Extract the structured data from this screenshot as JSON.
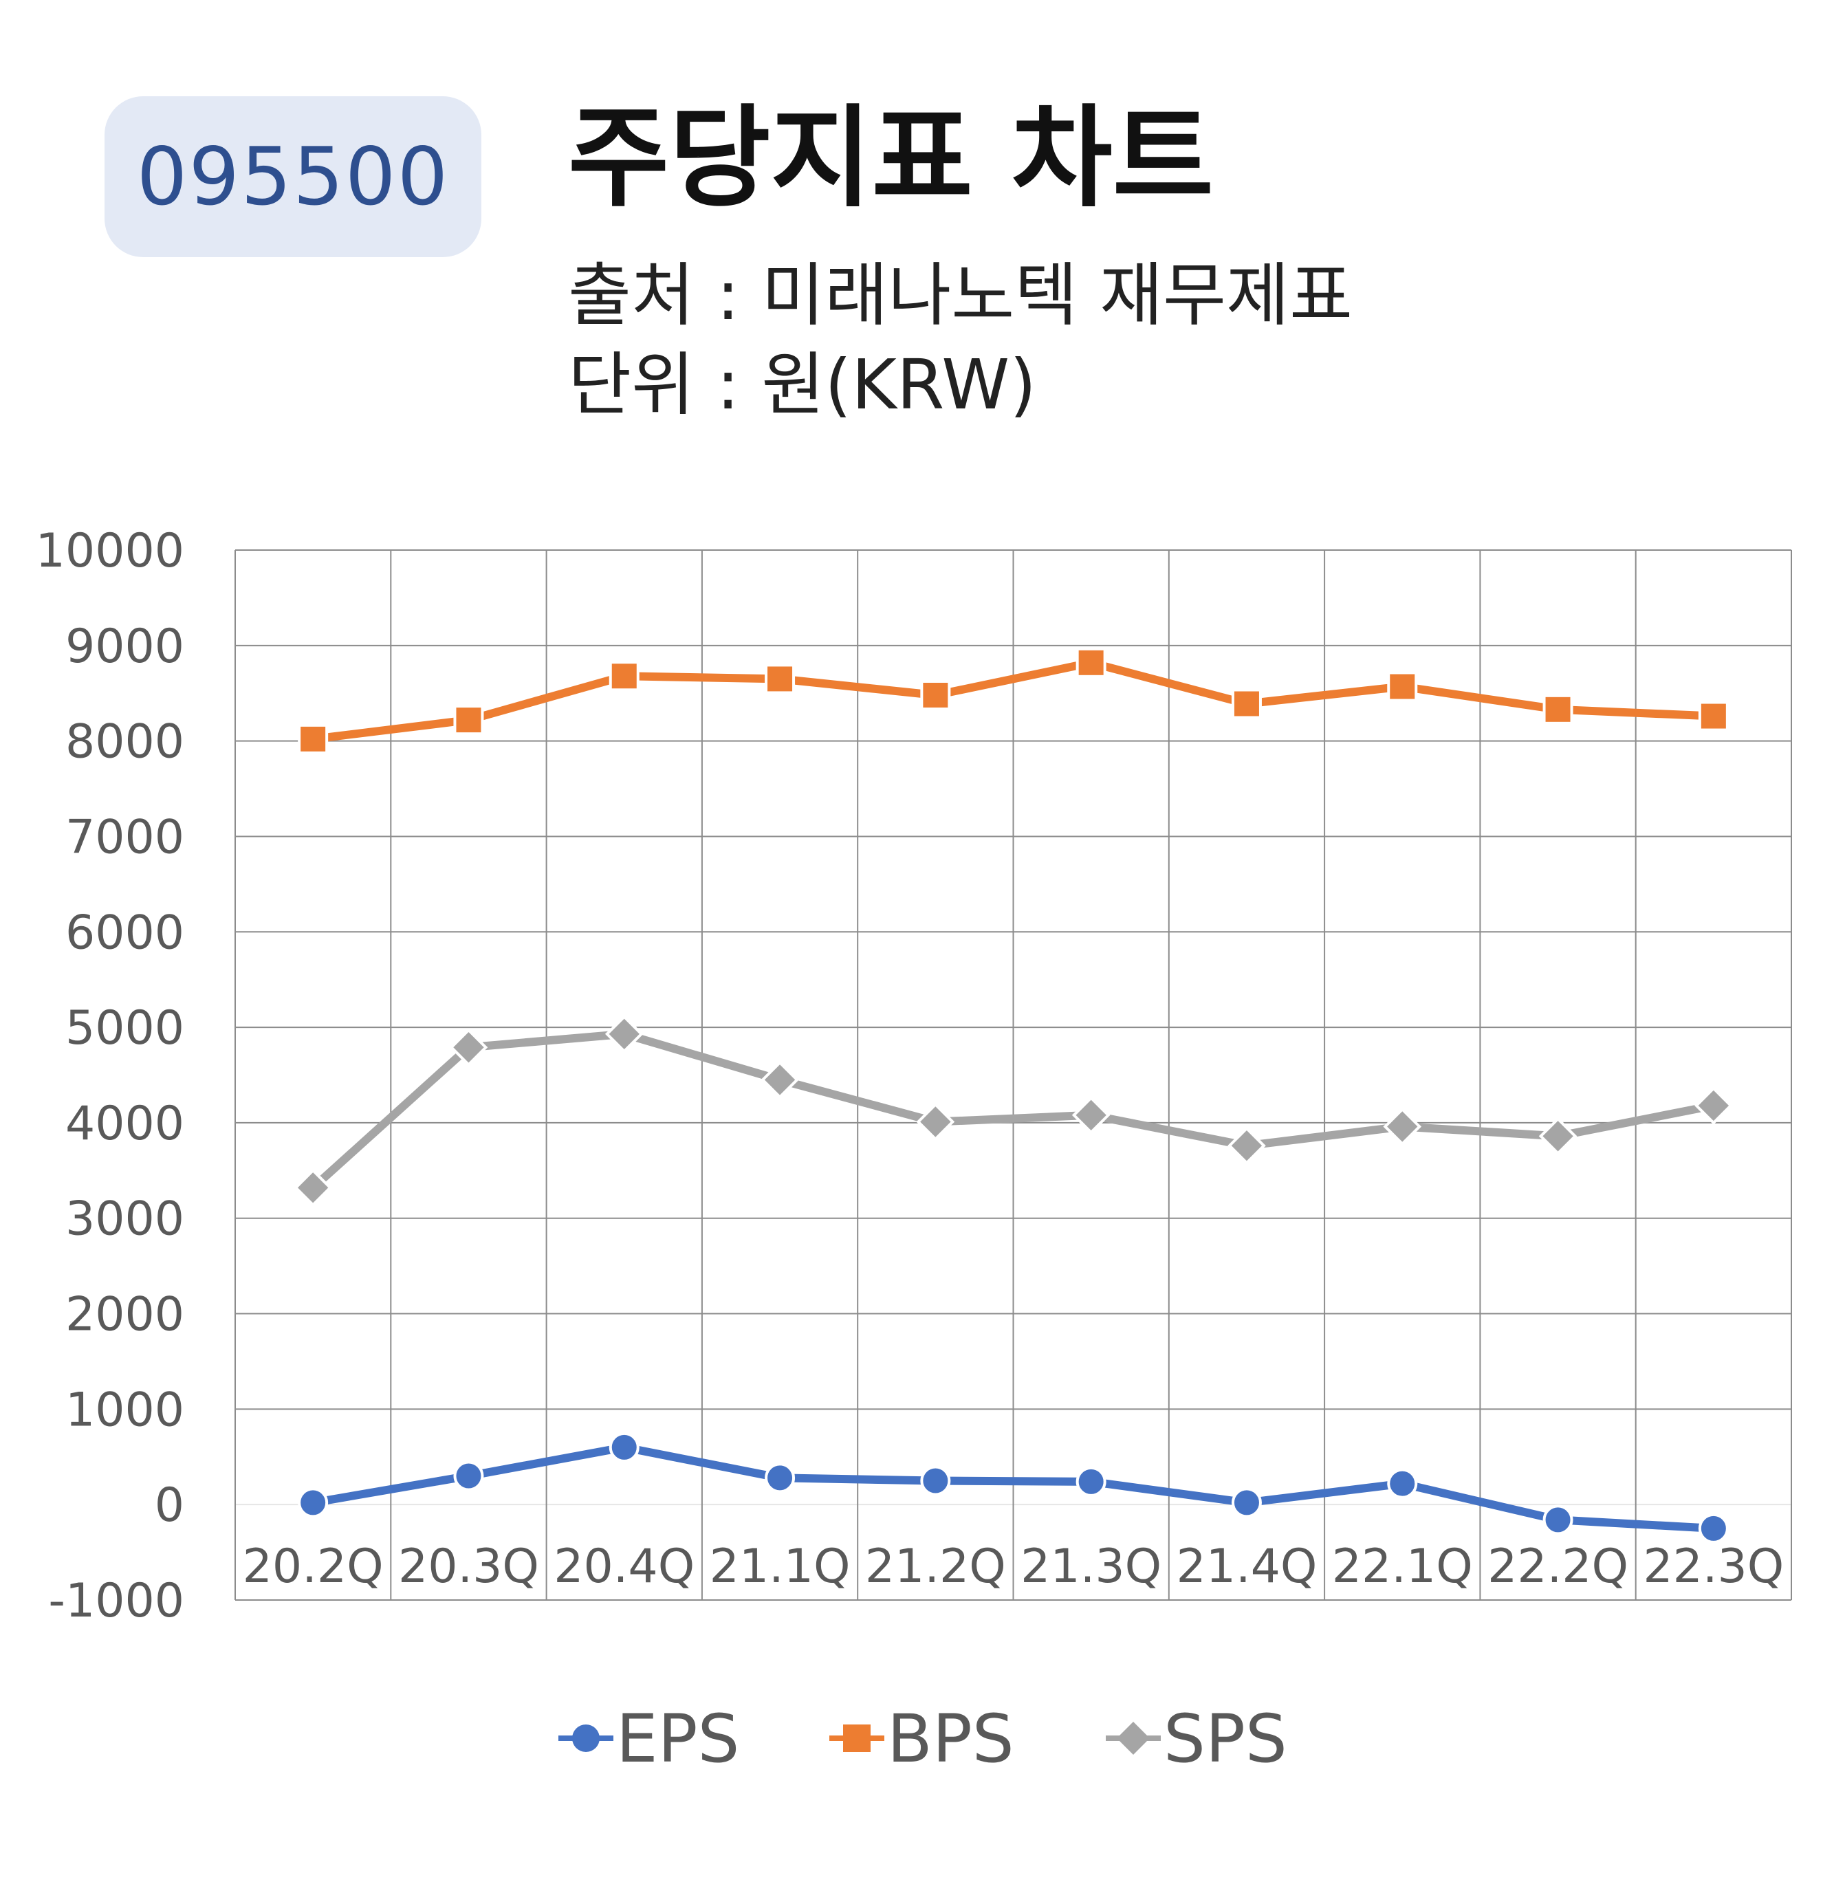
{
  "header": {
    "code": "095500",
    "title": "주당지표 차트",
    "source": "출처 : 미래나노텍 재무제표",
    "unit": "단위 : 원(KRW)"
  },
  "chart_data": {
    "type": "line",
    "categories": [
      "20.2Q",
      "20.3Q",
      "20.4Q",
      "21.1Q",
      "21.2Q",
      "21.3Q",
      "21.4Q",
      "22.1Q",
      "22.2Q",
      "22.3Q"
    ],
    "ylim": [
      -1000,
      10000
    ],
    "yticks": [
      "10000",
      "9000",
      "8000",
      "7000",
      "6000",
      "5000",
      "4000",
      "3000",
      "2000",
      "1000",
      "0",
      "-1000"
    ],
    "grid": true,
    "legend_position": "bottom",
    "series": [
      {
        "name": "EPS",
        "color": "#4472c4",
        "marker": "circle",
        "values": [
          20,
          300,
          600,
          280,
          250,
          240,
          20,
          220,
          -160,
          -250
        ]
      },
      {
        "name": "BPS",
        "color": "#ed7d31",
        "marker": "square",
        "values": [
          8020,
          8220,
          8680,
          8650,
          8480,
          8820,
          8390,
          8570,
          8330,
          8260
        ]
      },
      {
        "name": "SPS",
        "color": "#a5a5a5",
        "marker": "diamond",
        "values": [
          3320,
          4790,
          4930,
          4450,
          4010,
          4080,
          3760,
          3960,
          3860,
          4180
        ]
      }
    ]
  }
}
